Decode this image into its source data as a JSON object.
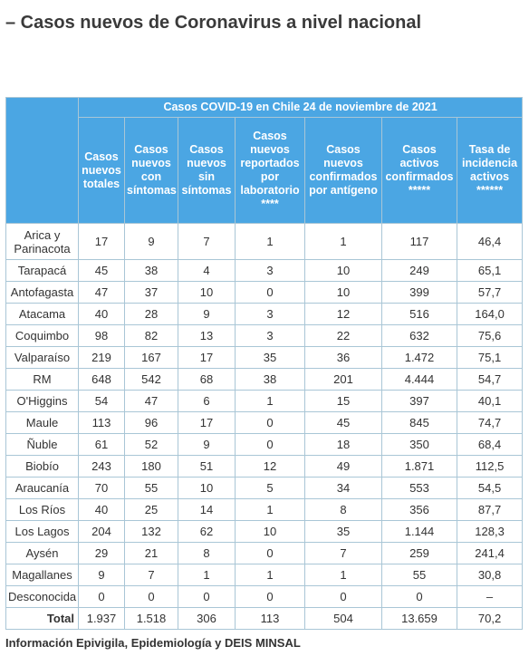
{
  "header": {
    "title": "– Casos nuevos de Coronavirus a nivel nacional"
  },
  "table": {
    "caption": "Casos COVID-19 en Chile 24 de noviembre de 2021",
    "columns": [
      "Casos nuevos totales",
      "Casos nuevos con síntomas",
      "Casos nuevos sin síntomas",
      "Casos nuevos reportados por laboratorio ****",
      "Casos nuevos confirmados por antígeno",
      "Casos activos confirmados *****",
      "Tasa de incidencia activos ******"
    ],
    "rows": [
      [
        "Arica y Parinacota",
        "17",
        "9",
        "7",
        "1",
        "1",
        "117",
        "46,4"
      ],
      [
        "Tarapacá",
        "45",
        "38",
        "4",
        "3",
        "10",
        "249",
        "65,1"
      ],
      [
        "Antofagasta",
        "47",
        "37",
        "10",
        "0",
        "10",
        "399",
        "57,7"
      ],
      [
        "Atacama",
        "40",
        "28",
        "9",
        "3",
        "12",
        "516",
        "164,0"
      ],
      [
        "Coquimbo",
        "98",
        "82",
        "13",
        "3",
        "22",
        "632",
        "75,6"
      ],
      [
        "Valparaíso",
        "219",
        "167",
        "17",
        "35",
        "36",
        "1.472",
        "75,1"
      ],
      [
        "RM",
        "648",
        "542",
        "68",
        "38",
        "201",
        "4.444",
        "54,7"
      ],
      [
        "O'Higgins",
        "54",
        "47",
        "6",
        "1",
        "15",
        "397",
        "40,1"
      ],
      [
        "Maule",
        "113",
        "96",
        "17",
        "0",
        "45",
        "845",
        "74,7"
      ],
      [
        "Ñuble",
        "61",
        "52",
        "9",
        "0",
        "18",
        "350",
        "68,4"
      ],
      [
        "Biobío",
        "243",
        "180",
        "51",
        "12",
        "49",
        "1.871",
        "112,5"
      ],
      [
        "Araucanía",
        "70",
        "55",
        "10",
        "5",
        "34",
        "553",
        "54,5"
      ],
      [
        "Los Ríos",
        "40",
        "25",
        "14",
        "1",
        "8",
        "356",
        "87,7"
      ],
      [
        "Los Lagos",
        "204",
        "132",
        "62",
        "10",
        "35",
        "1.144",
        "128,3"
      ],
      [
        "Aysén",
        "29",
        "21",
        "8",
        "0",
        "7",
        "259",
        "241,4"
      ],
      [
        "Magallanes",
        "9",
        "7",
        "1",
        "1",
        "1",
        "55",
        "30,8"
      ],
      [
        "Desconocida",
        "0",
        "0",
        "0",
        "0",
        "0",
        "0",
        "–"
      ]
    ],
    "total": [
      "Total",
      "1.937",
      "1.518",
      "306",
      "113",
      "504",
      "13.659",
      "70,2"
    ]
  },
  "footer": {
    "source": "Información Epivigila, Epidemiología y DEIS MINSAL"
  }
}
